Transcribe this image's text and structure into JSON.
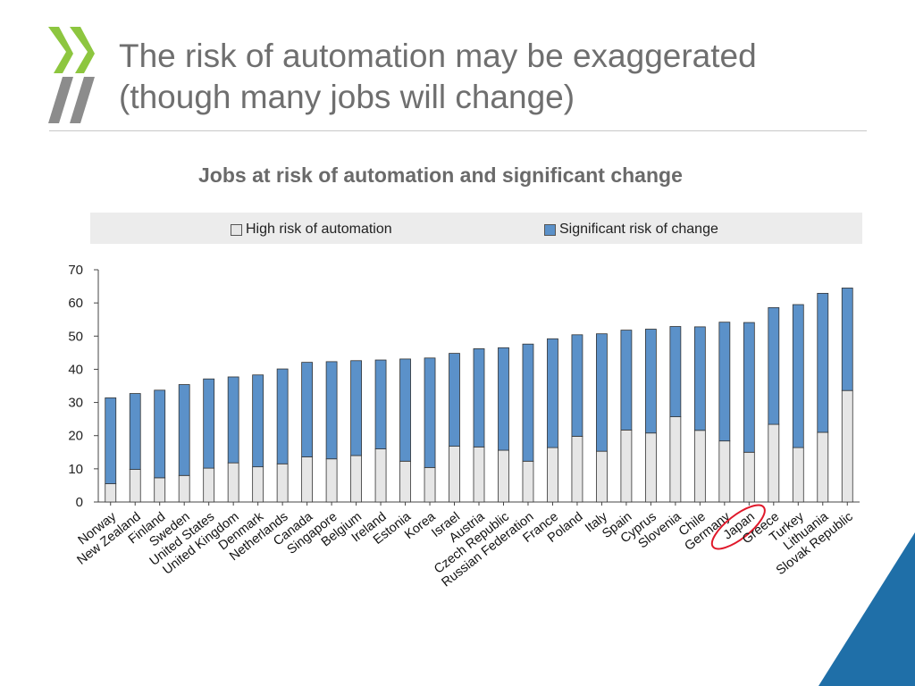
{
  "slide": {
    "title_line1": "The risk of automation may be exaggerated",
    "title_line2": "(though many jobs will change)"
  },
  "colors": {
    "accent_green": "#8dc63f",
    "logo_gray": "#8c8c8c",
    "corner_blue": "#1f6fa8",
    "series_high": "#e6e6e6",
    "series_change": "#5b91c9",
    "highlight_red": "#e0182a"
  },
  "chart_data": {
    "type": "bar",
    "stacked": true,
    "title": "Jobs at risk of automation and significant change",
    "xlabel": "",
    "ylabel": "",
    "ylim": [
      0,
      70
    ],
    "yticks": [
      0,
      10,
      20,
      30,
      40,
      50,
      60,
      70
    ],
    "legend_position": "top",
    "highlighted_category": "Japan",
    "categories": [
      "Norway",
      "New Zealand",
      "Finland",
      "Sweden",
      "United States",
      "United Kingdom",
      "Denmark",
      "Netherlands",
      "Canada",
      "Singapore",
      "Belgium",
      "Ireland",
      "Estonia",
      "Korea",
      "Israel",
      "Austria",
      "Czech Republic",
      "Russian Federation",
      "France",
      "Poland",
      "Italy",
      "Spain",
      "Cyprus",
      "Slovenia",
      "Chile",
      "Germany",
      "Japan",
      "Greece",
      "Turkey",
      "Lithuania",
      "Slovak Republic"
    ],
    "series": [
      {
        "name": "High risk of automation",
        "color": "#e6e6e6",
        "values": [
          5.5,
          9.8,
          7.3,
          8.0,
          10.2,
          11.8,
          10.6,
          11.5,
          13.6,
          13.0,
          14.0,
          16.0,
          12.3,
          10.4,
          16.8,
          16.6,
          15.6,
          12.3,
          16.4,
          19.8,
          15.3,
          21.7,
          20.8,
          25.7,
          21.6,
          18.4,
          15.0,
          23.4,
          16.4,
          21.0,
          33.6
        ]
      },
      {
        "name": "Significant risk of change",
        "color": "#5b91c9",
        "values": [
          25.9,
          22.9,
          26.4,
          27.4,
          26.9,
          25.9,
          27.7,
          28.6,
          28.5,
          29.3,
          28.6,
          26.8,
          30.8,
          33.0,
          28.0,
          29.6,
          30.9,
          35.3,
          32.8,
          30.6,
          35.4,
          30.1,
          31.3,
          27.2,
          31.2,
          35.8,
          39.1,
          35.2,
          43.1,
          41.9,
          30.9
        ]
      }
    ]
  }
}
